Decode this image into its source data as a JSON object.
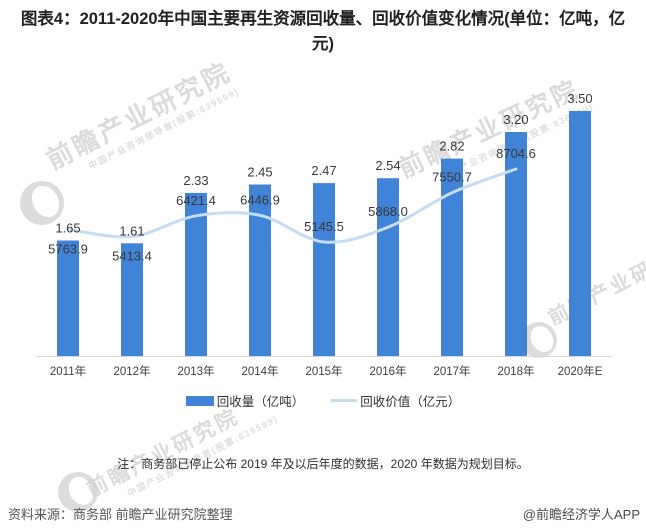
{
  "title": "图表4：2011-2020年中国主要再生资源回收量、回收价值变化情况(单位：亿吨，亿元)",
  "chart_data": {
    "type": "bar",
    "subtype": "bar-line-combo",
    "categories": [
      "2011年",
      "2012年",
      "2013年",
      "2014年",
      "2015年",
      "2016年",
      "2017年",
      "2018年",
      "2020年E"
    ],
    "series": [
      {
        "name": "回收量（亿吨）",
        "type": "bar",
        "color": "#4183d7",
        "values": [
          1.65,
          1.61,
          2.33,
          2.45,
          2.47,
          2.54,
          2.82,
          3.2,
          3.5
        ],
        "labels": [
          "1.65",
          "1.61",
          "2.33",
          "2.45",
          "2.47",
          "2.54",
          "2.82",
          "3.20",
          "3.50"
        ]
      },
      {
        "name": "回收价值（亿元）",
        "type": "line",
        "color": "#c6dcf2",
        "values": [
          5763.9,
          5413.4,
          6421.4,
          6446.9,
          5145.5,
          5868.0,
          7550.7,
          8704.6,
          null
        ],
        "labels": [
          "5763.9",
          "5413.4",
          "6421.4",
          "6446.9",
          "5145.5",
          "5868.0",
          "7550.7",
          "8704.6",
          ""
        ],
        "label_positions": [
          "below",
          "below",
          "above",
          "above",
          "above",
          "above",
          "above",
          "above",
          "none"
        ]
      }
    ],
    "xlabel": "",
    "ylabel": "",
    "ylim_bars": [
      0,
      4
    ],
    "ylim_line": [
      4000,
      10000
    ],
    "gridlines": false,
    "legend_position": "bottom",
    "data_labels": true
  },
  "note": "注：商务部已停止公布 2019 年及以后年度的数据，2020 年数据为规划目标。",
  "source": "资料来源：商务部 前瞻产业研究院整理",
  "credit": "@前瞻经济学人APP",
  "watermark": {
    "brand": "前瞻产业研究院",
    "sub": "中国产业咨询领导者(股票:839599)"
  }
}
